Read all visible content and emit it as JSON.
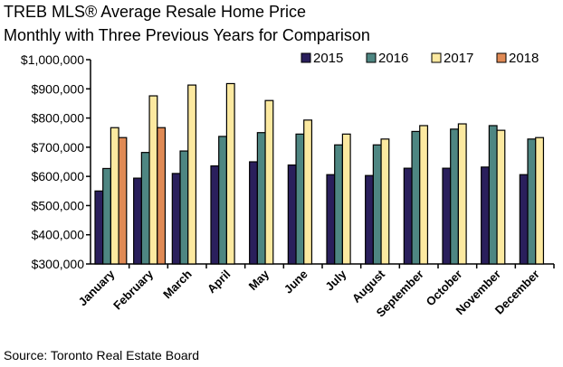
{
  "chart_data": {
    "type": "bar",
    "title": "TREB MLS® Average Resale Home Price",
    "subtitle": "Monthly with Three Previous Years for Comparison",
    "source": "Source: Toronto Real Estate Board",
    "ylim": [
      300000,
      1000000
    ],
    "yticks": [
      300000,
      400000,
      500000,
      600000,
      700000,
      800000,
      900000,
      1000000
    ],
    "ytick_labels": [
      "$300,000",
      "$400,000",
      "$500,000",
      "$600,000",
      "$700,000",
      "$800,000",
      "$900,000",
      "$1,000,000"
    ],
    "grid": false,
    "legend_position": "top-right",
    "categories": [
      "January",
      "February",
      "March",
      "April",
      "May",
      "June",
      "July",
      "August",
      "September",
      "October",
      "November",
      "December"
    ],
    "series": [
      {
        "name": "2015",
        "color": "#2a1f5c",
        "values": [
          550000,
          594000,
          610000,
          636000,
          650000,
          639000,
          606000,
          603000,
          628000,
          628000,
          632000,
          606000
        ]
      },
      {
        "name": "2016",
        "color": "#4e8682",
        "values": [
          627000,
          682000,
          687000,
          737000,
          750000,
          745000,
          708000,
          708000,
          754000,
          762000,
          774000,
          728000
        ]
      },
      {
        "name": "2017",
        "color": "#fce9a0",
        "values": [
          767000,
          876000,
          913000,
          918000,
          860000,
          793000,
          745000,
          728000,
          774000,
          780000,
          758000,
          733000
        ]
      },
      {
        "name": "2018",
        "color": "#e08a55",
        "values": [
          733000,
          767000,
          null,
          null,
          null,
          null,
          null,
          null,
          null,
          null,
          null,
          null
        ]
      }
    ]
  }
}
